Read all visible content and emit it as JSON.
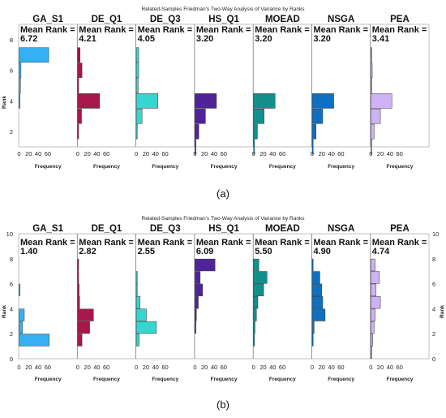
{
  "chart_data": [
    {
      "type": "bar",
      "orientation": "horizontal",
      "title": "Related-Samples Friedman's Two-Way Analysis of Variance by Ranks",
      "caption": "(a)",
      "ylabel": "Rank",
      "xlabel": "Frequency",
      "ylim": [
        1,
        9
      ],
      "y_ticks": [
        2,
        4,
        6,
        8
      ],
      "x_ticks": [
        0,
        20,
        40,
        60
      ],
      "xlim": [
        0,
        70
      ],
      "right_axis": false,
      "mean_rank_label": "Mean Rank =",
      "groups": [
        {
          "name": "GA_S1",
          "mean_rank": "6.72",
          "color": "#35b0f2",
          "bins": [
            {
              "rank": 7,
              "count": 62
            },
            {
              "rank": 6,
              "count": 4
            },
            {
              "rank": 5,
              "count": 3
            },
            {
              "rank": 4,
              "count": 1
            }
          ]
        },
        {
          "name": "DE_Q1",
          "mean_rank": "4.21",
          "color": "#a8174a",
          "bins": [
            {
              "rank": 7,
              "count": 5
            },
            {
              "rank": 6,
              "count": 9
            },
            {
              "rank": 5,
              "count": 2
            },
            {
              "rank": 4,
              "count": 46
            },
            {
              "rank": 3,
              "count": 8
            },
            {
              "rank": 2,
              "count": 1
            }
          ]
        },
        {
          "name": "DE_Q3",
          "mean_rank": "4.05",
          "color": "#35d6d0",
          "bins": [
            {
              "rank": 7,
              "count": 5
            },
            {
              "rank": 6,
              "count": 5
            },
            {
              "rank": 5,
              "count": 4
            },
            {
              "rank": 4,
              "count": 45
            },
            {
              "rank": 3,
              "count": 12
            },
            {
              "rank": 2,
              "count": 1
            }
          ]
        },
        {
          "name": "HS_Q1",
          "mean_rank": "3.20",
          "color": "#4f2497",
          "bins": [
            {
              "rank": 4,
              "count": 45
            },
            {
              "rank": 3,
              "count": 22
            },
            {
              "rank": 2,
              "count": 8
            },
            {
              "rank": 1,
              "count": 2
            }
          ]
        },
        {
          "name": "MOEAD",
          "mean_rank": "3.20",
          "color": "#138f8b",
          "bins": [
            {
              "rank": 4,
              "count": 45
            },
            {
              "rank": 3,
              "count": 22
            },
            {
              "rank": 2,
              "count": 8
            },
            {
              "rank": 1,
              "count": 2
            }
          ]
        },
        {
          "name": "NSGA",
          "mean_rank": "3.20",
          "color": "#0f6fc0",
          "bins": [
            {
              "rank": 4,
              "count": 45
            },
            {
              "rank": 3,
              "count": 22
            },
            {
              "rank": 2,
              "count": 8
            },
            {
              "rank": 1,
              "count": 2
            }
          ]
        },
        {
          "name": "PEA",
          "mean_rank": "3.41",
          "color": "#cdb3f5",
          "bins": [
            {
              "rank": 7,
              "count": 1
            },
            {
              "rank": 6,
              "count": 3
            },
            {
              "rank": 5,
              "count": 1
            },
            {
              "rank": 4,
              "count": 44
            },
            {
              "rank": 3,
              "count": 20
            },
            {
              "rank": 2,
              "count": 7
            },
            {
              "rank": 1,
              "count": 2
            }
          ]
        }
      ]
    },
    {
      "type": "bar",
      "orientation": "horizontal",
      "title": "Related-Samples Friedman's Two-Way Analysis of Variance by Ranks",
      "caption": "(b)",
      "ylabel": "Rank",
      "xlabel": "Frequency",
      "ylim": [
        0,
        10
      ],
      "y_ticks": [
        0,
        2,
        4,
        6,
        8,
        10
      ],
      "x_ticks": [
        0,
        20,
        40,
        60
      ],
      "xlim": [
        0,
        70
      ],
      "right_axis": true,
      "mean_rank_label": "Mean Rank =",
      "groups": [
        {
          "name": "GA_S1",
          "mean_rank": "1.40",
          "color": "#35b0f2",
          "bins": [
            {
              "rank": 5.5,
              "count": 1
            },
            {
              "rank": 3.5,
              "count": 11
            },
            {
              "rank": 2.5,
              "count": 7
            },
            {
              "rank": 1.5,
              "count": 63
            }
          ]
        },
        {
          "name": "DE_Q1",
          "mean_rank": "2.82",
          "color": "#a8174a",
          "bins": [
            {
              "rank": 7.5,
              "count": 1
            },
            {
              "rank": 6.5,
              "count": 2
            },
            {
              "rank": 5.5,
              "count": 3
            },
            {
              "rank": 4.5,
              "count": 4
            },
            {
              "rank": 3.5,
              "count": 33
            },
            {
              "rank": 2.5,
              "count": 25
            },
            {
              "rank": 1.5,
              "count": 9
            }
          ]
        },
        {
          "name": "DE_Q3",
          "mean_rank": "2.55",
          "color": "#35d6d0",
          "bins": [
            {
              "rank": 6.5,
              "count": 1
            },
            {
              "rank": 5.5,
              "count": 2
            },
            {
              "rank": 4.5,
              "count": 8
            },
            {
              "rank": 3.5,
              "count": 21
            },
            {
              "rank": 2.5,
              "count": 42
            },
            {
              "rank": 1.5,
              "count": 6
            }
          ]
        },
        {
          "name": "HS_Q1",
          "mean_rank": "6.09",
          "color": "#4f2497",
          "bins": [
            {
              "rank": 7.5,
              "count": 42
            },
            {
              "rank": 6.5,
              "count": 11
            },
            {
              "rank": 5.5,
              "count": 16
            },
            {
              "rank": 4.5,
              "count": 7
            },
            {
              "rank": 3.5,
              "count": 3
            },
            {
              "rank": 2.5,
              "count": 1
            }
          ]
        },
        {
          "name": "MOEAD",
          "mean_rank": "5.50",
          "color": "#138f8b",
          "bins": [
            {
              "rank": 7.5,
              "count": 11
            },
            {
              "rank": 6.5,
              "count": 28
            },
            {
              "rank": 5.5,
              "count": 21
            },
            {
              "rank": 4.5,
              "count": 9
            },
            {
              "rank": 3.5,
              "count": 6
            },
            {
              "rank": 2.5,
              "count": 3
            },
            {
              "rank": 1.5,
              "count": 1
            }
          ]
        },
        {
          "name": "NSGA",
          "mean_rank": "4.90",
          "color": "#0f6fc0",
          "bins": [
            {
              "rank": 7.5,
              "count": 2
            },
            {
              "rank": 6.5,
              "count": 16
            },
            {
              "rank": 5.5,
              "count": 20
            },
            {
              "rank": 4.5,
              "count": 22
            },
            {
              "rank": 3.5,
              "count": 27
            },
            {
              "rank": 2.5,
              "count": 4
            },
            {
              "rank": 1.5,
              "count": 1
            }
          ]
        },
        {
          "name": "PEA",
          "mean_rank": "4.74",
          "color": "#cdb3f5",
          "bins": [
            {
              "rank": 7.5,
              "count": 9
            },
            {
              "rank": 6.5,
              "count": 18
            },
            {
              "rank": 5.5,
              "count": 11
            },
            {
              "rank": 4.5,
              "count": 20
            },
            {
              "rank": 3.5,
              "count": 9
            },
            {
              "rank": 2.5,
              "count": 7
            },
            {
              "rank": 1.5,
              "count": 4
            },
            {
              "rank": 0.5,
              "count": 2
            }
          ]
        }
      ]
    }
  ]
}
